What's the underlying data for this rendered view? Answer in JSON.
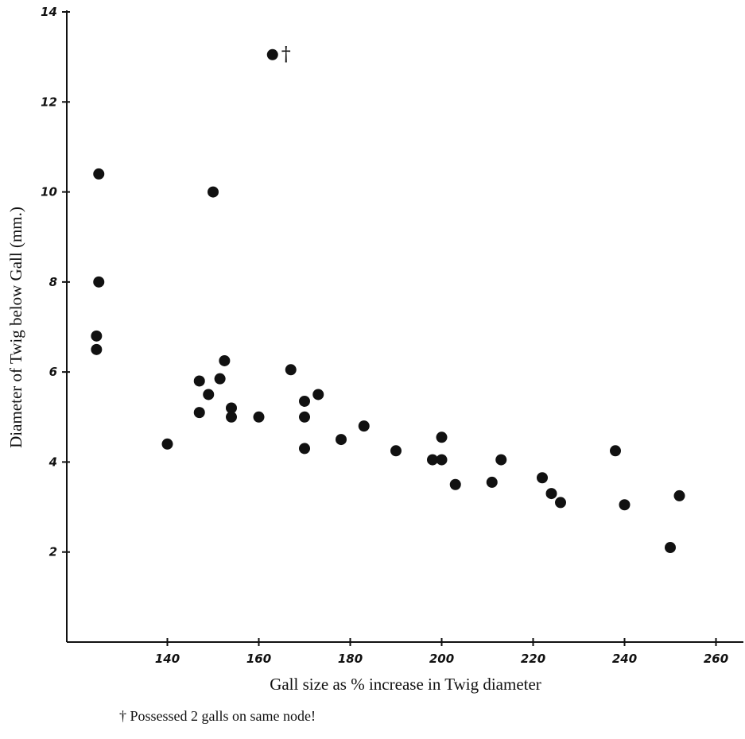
{
  "chart_data": {
    "type": "scatter",
    "xlabel": "Gall size as % increase in Twig diameter",
    "ylabel": "Diameter of Twig below Gall (mm.)",
    "footnote": "† Possessed 2 galls on same node!",
    "xlim": [
      118,
      266
    ],
    "ylim": [
      0,
      14
    ],
    "x_ticks": [
      140,
      160,
      180,
      200,
      220,
      240,
      260
    ],
    "y_ticks": [
      2,
      4,
      6,
      8,
      10,
      12,
      14
    ],
    "x_tick_labels": [
      "140",
      "160",
      "180",
      "200",
      "220",
      "240",
      "260"
    ],
    "y_tick_labels": [
      "2",
      "4",
      "6",
      "8",
      "10",
      "12",
      "14"
    ],
    "grid": false,
    "points": [
      {
        "x": 125,
        "y": 10.4
      },
      {
        "x": 125,
        "y": 8.0
      },
      {
        "x": 124.5,
        "y": 6.8
      },
      {
        "x": 124.5,
        "y": 6.5
      },
      {
        "x": 150,
        "y": 10.0
      },
      {
        "x": 163,
        "y": 13.05,
        "mark": "†"
      },
      {
        "x": 140,
        "y": 4.4
      },
      {
        "x": 147,
        "y": 5.8
      },
      {
        "x": 147,
        "y": 5.1
      },
      {
        "x": 149,
        "y": 5.5
      },
      {
        "x": 151.5,
        "y": 5.85
      },
      {
        "x": 152.5,
        "y": 6.25
      },
      {
        "x": 154,
        "y": 5.2
      },
      {
        "x": 154,
        "y": 5.0
      },
      {
        "x": 160,
        "y": 5.0
      },
      {
        "x": 167,
        "y": 6.05
      },
      {
        "x": 170,
        "y": 5.35
      },
      {
        "x": 170,
        "y": 5.0
      },
      {
        "x": 170,
        "y": 4.3
      },
      {
        "x": 173,
        "y": 5.5
      },
      {
        "x": 178,
        "y": 4.5
      },
      {
        "x": 183,
        "y": 4.8
      },
      {
        "x": 190,
        "y": 4.25
      },
      {
        "x": 198,
        "y": 4.05
      },
      {
        "x": 200,
        "y": 4.55
      },
      {
        "x": 200,
        "y": 4.05
      },
      {
        "x": 203,
        "y": 3.5
      },
      {
        "x": 211,
        "y": 3.55
      },
      {
        "x": 213,
        "y": 4.05
      },
      {
        "x": 222,
        "y": 3.65
      },
      {
        "x": 224,
        "y": 3.3
      },
      {
        "x": 226,
        "y": 3.1
      },
      {
        "x": 238,
        "y": 4.25
      },
      {
        "x": 240,
        "y": 3.05
      },
      {
        "x": 250,
        "y": 2.1
      },
      {
        "x": 252,
        "y": 3.25
      }
    ]
  }
}
